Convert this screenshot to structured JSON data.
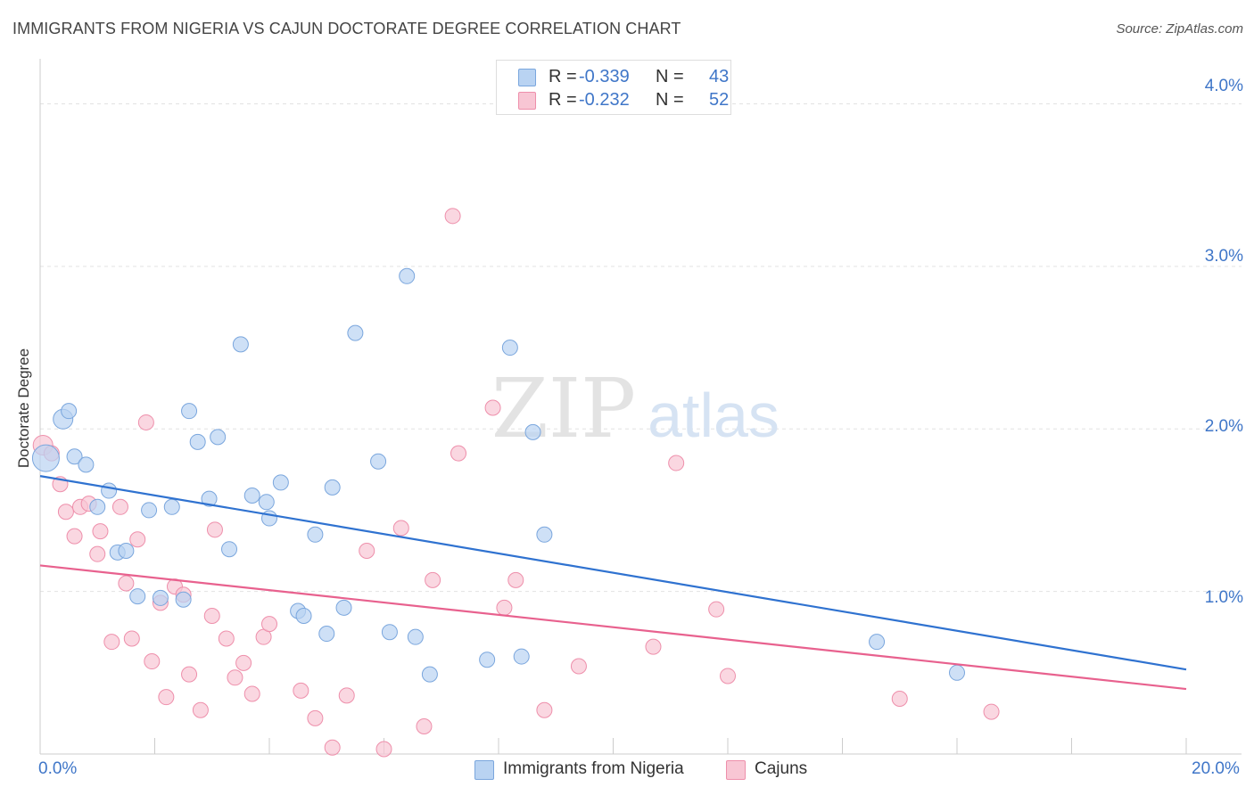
{
  "title": "IMMIGRANTS FROM NIGERIA VS CAJUN DOCTORATE DEGREE CORRELATION CHART",
  "source": "Source: ZipAtlas.com",
  "watermark": {
    "zip": "ZIP",
    "atlas": "atlas"
  },
  "legend_top": {
    "rows": [
      {
        "label_r": "R =",
        "r": "-0.339",
        "label_n": "N =",
        "n": "43"
      },
      {
        "label_r": "R =",
        "r": "-0.232",
        "label_n": "N =",
        "n": "52"
      }
    ]
  },
  "legend_bottom": {
    "series1": "Immigrants from Nigeria",
    "series2": "Cajuns"
  },
  "colors": {
    "nigeria_fill": "#b9d3f2",
    "nigeria_stroke": "#7aa6dd",
    "nigeria_line": "#2f72d0",
    "cajun_fill": "#f8c6d4",
    "cajun_stroke": "#ee8fab",
    "cajun_line": "#e8618e",
    "tick_text": "#3f76c8"
  },
  "chart_data": {
    "type": "scatter",
    "title": "IMMIGRANTS FROM NIGERIA VS CAJUN DOCTORATE DEGREE CORRELATION CHART",
    "xlabel": "",
    "ylabel": "Doctorate Degree",
    "xlim": [
      0,
      20
    ],
    "ylim": [
      0,
      4.2
    ],
    "x_tick_labels": [
      "0.0%",
      "20.0%"
    ],
    "y_ticks": [
      1,
      2,
      3,
      4
    ],
    "y_tick_labels": [
      "1.0%",
      "2.0%",
      "3.0%",
      "4.0%"
    ],
    "grid": true,
    "series": [
      {
        "name": "Immigrants from Nigeria",
        "r": -0.339,
        "n": 43,
        "trend": {
          "x0": 0,
          "y0": 1.71,
          "x1": 20,
          "y1": 0.52
        },
        "points": [
          {
            "x": 0.1,
            "y": 1.82,
            "s": 3
          },
          {
            "x": 0.4,
            "y": 2.06,
            "s": 2
          },
          {
            "x": 0.5,
            "y": 2.11,
            "s": 1
          },
          {
            "x": 0.6,
            "y": 1.83,
            "s": 1
          },
          {
            "x": 0.8,
            "y": 1.78,
            "s": 1
          },
          {
            "x": 1.0,
            "y": 1.52,
            "s": 1
          },
          {
            "x": 1.2,
            "y": 1.62,
            "s": 1
          },
          {
            "x": 1.35,
            "y": 1.24,
            "s": 1
          },
          {
            "x": 1.5,
            "y": 1.25,
            "s": 1
          },
          {
            "x": 1.7,
            "y": 0.97,
            "s": 1
          },
          {
            "x": 1.9,
            "y": 1.5,
            "s": 1
          },
          {
            "x": 2.1,
            "y": 0.96,
            "s": 1
          },
          {
            "x": 2.3,
            "y": 1.52,
            "s": 1
          },
          {
            "x": 2.5,
            "y": 0.95,
            "s": 1
          },
          {
            "x": 2.6,
            "y": 2.11,
            "s": 1
          },
          {
            "x": 2.75,
            "y": 1.92,
            "s": 1
          },
          {
            "x": 2.95,
            "y": 1.57,
            "s": 1
          },
          {
            "x": 3.1,
            "y": 1.95,
            "s": 1
          },
          {
            "x": 3.3,
            "y": 1.26,
            "s": 1
          },
          {
            "x": 3.5,
            "y": 2.52,
            "s": 1
          },
          {
            "x": 3.7,
            "y": 1.59,
            "s": 1
          },
          {
            "x": 3.95,
            "y": 1.55,
            "s": 1
          },
          {
            "x": 4.0,
            "y": 1.45,
            "s": 1
          },
          {
            "x": 4.2,
            "y": 1.67,
            "s": 1
          },
          {
            "x": 4.5,
            "y": 0.88,
            "s": 1
          },
          {
            "x": 4.6,
            "y": 0.85,
            "s": 1
          },
          {
            "x": 4.8,
            "y": 1.35,
            "s": 1
          },
          {
            "x": 5.0,
            "y": 0.74,
            "s": 1
          },
          {
            "x": 5.1,
            "y": 1.64,
            "s": 1
          },
          {
            "x": 5.3,
            "y": 0.9,
            "s": 1
          },
          {
            "x": 5.5,
            "y": 2.59,
            "s": 1
          },
          {
            "x": 5.9,
            "y": 1.8,
            "s": 1
          },
          {
            "x": 6.1,
            "y": 0.75,
            "s": 1
          },
          {
            "x": 6.4,
            "y": 2.94,
            "s": 1
          },
          {
            "x": 6.55,
            "y": 0.72,
            "s": 1
          },
          {
            "x": 6.8,
            "y": 0.49,
            "s": 1
          },
          {
            "x": 7.8,
            "y": 0.58,
            "s": 1
          },
          {
            "x": 8.2,
            "y": 2.5,
            "s": 1
          },
          {
            "x": 8.4,
            "y": 0.6,
            "s": 1
          },
          {
            "x": 8.6,
            "y": 1.98,
            "s": 1
          },
          {
            "x": 8.8,
            "y": 1.35,
            "s": 1
          },
          {
            "x": 14.6,
            "y": 0.69,
            "s": 1
          },
          {
            "x": 16.0,
            "y": 0.5,
            "s": 1
          }
        ]
      },
      {
        "name": "Cajuns",
        "r": -0.232,
        "n": 52,
        "trend": {
          "x0": 0,
          "y0": 1.16,
          "x1": 20,
          "y1": 0.4
        },
        "points": [
          {
            "x": 0.05,
            "y": 1.9,
            "s": 2
          },
          {
            "x": 0.2,
            "y": 1.85,
            "s": 1
          },
          {
            "x": 0.35,
            "y": 1.66,
            "s": 1
          },
          {
            "x": 0.45,
            "y": 1.49,
            "s": 1
          },
          {
            "x": 0.6,
            "y": 1.34,
            "s": 1
          },
          {
            "x": 0.7,
            "y": 1.52,
            "s": 1
          },
          {
            "x": 0.85,
            "y": 1.54,
            "s": 1
          },
          {
            "x": 1.0,
            "y": 1.23,
            "s": 1
          },
          {
            "x": 1.05,
            "y": 1.37,
            "s": 1
          },
          {
            "x": 1.25,
            "y": 0.69,
            "s": 1
          },
          {
            "x": 1.4,
            "y": 1.52,
            "s": 1
          },
          {
            "x": 1.5,
            "y": 1.05,
            "s": 1
          },
          {
            "x": 1.6,
            "y": 0.71,
            "s": 1
          },
          {
            "x": 1.7,
            "y": 1.32,
            "s": 1
          },
          {
            "x": 1.85,
            "y": 2.04,
            "s": 1
          },
          {
            "x": 1.95,
            "y": 0.57,
            "s": 1
          },
          {
            "x": 2.1,
            "y": 0.93,
            "s": 1
          },
          {
            "x": 2.2,
            "y": 0.35,
            "s": 1
          },
          {
            "x": 2.35,
            "y": 1.03,
            "s": 1
          },
          {
            "x": 2.5,
            "y": 0.98,
            "s": 1
          },
          {
            "x": 2.6,
            "y": 0.49,
            "s": 1
          },
          {
            "x": 2.8,
            "y": 0.27,
            "s": 1
          },
          {
            "x": 3.0,
            "y": 0.85,
            "s": 1
          },
          {
            "x": 3.05,
            "y": 1.38,
            "s": 1
          },
          {
            "x": 3.25,
            "y": 0.71,
            "s": 1
          },
          {
            "x": 3.4,
            "y": 0.47,
            "s": 1
          },
          {
            "x": 3.55,
            "y": 0.56,
            "s": 1
          },
          {
            "x": 3.7,
            "y": 0.37,
            "s": 1
          },
          {
            "x": 3.9,
            "y": 0.72,
            "s": 1
          },
          {
            "x": 4.0,
            "y": 0.8,
            "s": 1
          },
          {
            "x": 4.55,
            "y": 0.39,
            "s": 1
          },
          {
            "x": 4.8,
            "y": 0.22,
            "s": 1
          },
          {
            "x": 5.1,
            "y": 0.04,
            "s": 1
          },
          {
            "x": 5.35,
            "y": 0.36,
            "s": 1
          },
          {
            "x": 5.7,
            "y": 1.25,
            "s": 1
          },
          {
            "x": 6.0,
            "y": 0.03,
            "s": 1
          },
          {
            "x": 6.3,
            "y": 1.39,
            "s": 1
          },
          {
            "x": 6.7,
            "y": 0.17,
            "s": 1
          },
          {
            "x": 6.85,
            "y": 1.07,
            "s": 1
          },
          {
            "x": 7.2,
            "y": 3.31,
            "s": 1
          },
          {
            "x": 7.3,
            "y": 1.85,
            "s": 1
          },
          {
            "x": 7.9,
            "y": 2.13,
            "s": 1
          },
          {
            "x": 8.1,
            "y": 0.9,
            "s": 1
          },
          {
            "x": 8.3,
            "y": 1.07,
            "s": 1
          },
          {
            "x": 8.8,
            "y": 0.27,
            "s": 1
          },
          {
            "x": 9.4,
            "y": 0.54,
            "s": 1
          },
          {
            "x": 10.7,
            "y": 0.66,
            "s": 1
          },
          {
            "x": 11.1,
            "y": 1.79,
            "s": 1
          },
          {
            "x": 11.8,
            "y": 0.89,
            "s": 1
          },
          {
            "x": 12.0,
            "y": 0.48,
            "s": 1
          },
          {
            "x": 15.0,
            "y": 0.34,
            "s": 1
          },
          {
            "x": 16.6,
            "y": 0.26,
            "s": 1
          }
        ]
      }
    ]
  }
}
